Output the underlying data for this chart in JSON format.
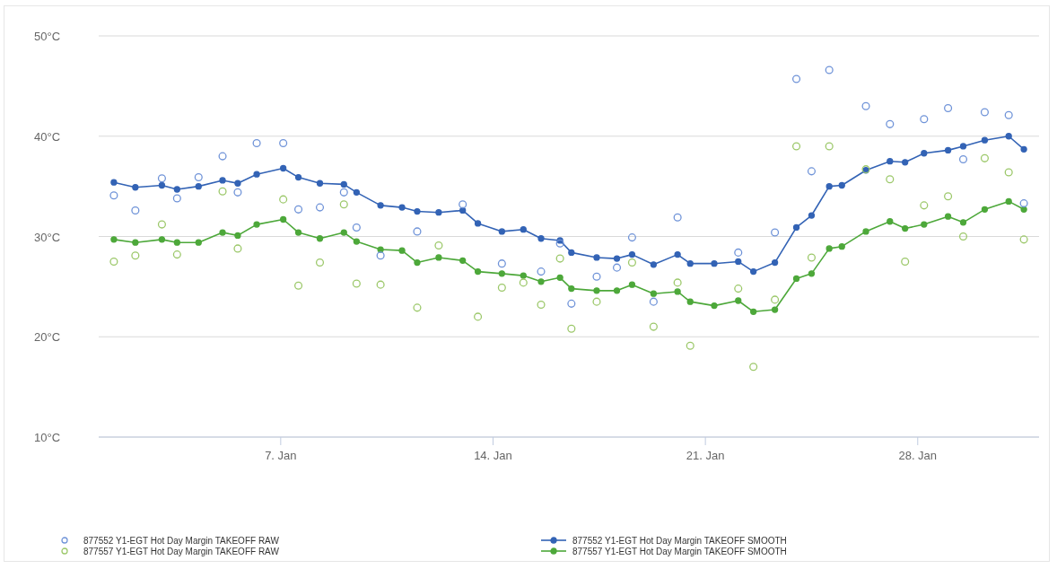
{
  "chart_data": {
    "type": "line",
    "marker": "circle",
    "grid": "y",
    "legend": "bottom",
    "xlim": [
      "--01-01",
      "--02-01"
    ],
    "xticks": [
      {
        "value": "--01-07",
        "label": "7. Jan"
      },
      {
        "value": "--01-14",
        "label": "14. Jan"
      },
      {
        "value": "--01-21",
        "label": "21. Jan"
      },
      {
        "value": "--01-28",
        "label": "28. Jan"
      }
    ],
    "ylim": [
      10,
      50
    ],
    "yticks": [
      {
        "value": 10,
        "label": "10°C"
      },
      {
        "value": 20,
        "label": "20°C"
      },
      {
        "value": 30,
        "label": "30°C"
      },
      {
        "value": 40,
        "label": "40°C"
      },
      {
        "value": 50,
        "label": "50°C"
      }
    ],
    "series": [
      {
        "name": "877552 Y1-EGT Hot Day Margin TAKEOFF RAW",
        "type": "scatter",
        "color": "#6f93d8",
        "x": [
          "--01-01T12:00",
          "--01-02T05:00",
          "--01-03T02:00",
          "--01-03T14:00",
          "--01-04T07:00",
          "--01-05T02:00",
          "--01-05T14:00",
          "--01-06T05:00",
          "--01-07T02:00",
          "--01-07T14:00",
          "--01-08T07:00",
          "--01-09T02:00",
          "--01-09T12:00",
          "--01-10T07:00",
          "--01-11T12:00",
          "--01-13T00:00",
          "--01-14T07:00",
          "--01-15T14:00",
          "--01-16T05:00",
          "--01-16T14:00",
          "--01-17T10:00",
          "--01-18T02:00",
          "--01-18T14:00",
          "--01-19T07:00",
          "--01-20T02:00",
          "--01-22T02:00",
          "--01-23T07:00",
          "--01-24T00:00",
          "--01-24T12:00",
          "--01-25T02:00",
          "--01-26T07:00",
          "--01-27T02:00",
          "--01-28T05:00",
          "--01-29T00:00",
          "--01-29T12:00",
          "--01-30T05:00",
          "--01-31T00:00",
          "--01-31T12:00"
        ],
        "values": [
          34.1,
          32.6,
          35.8,
          33.8,
          35.9,
          38.0,
          34.4,
          39.3,
          39.3,
          32.7,
          32.9,
          34.4,
          30.9,
          28.1,
          30.5,
          33.2,
          27.3,
          26.5,
          29.3,
          23.3,
          26.0,
          26.9,
          29.9,
          23.5,
          31.9,
          28.4,
          30.4,
          45.7,
          36.5,
          46.6,
          43.0,
          41.2,
          41.7,
          42.8,
          37.7,
          42.4,
          42.1,
          33.3
        ]
      },
      {
        "name": "877557 Y1-EGT Hot Day Margin TAKEOFF RAW",
        "type": "scatter",
        "color": "#9cc86a",
        "x": [
          "--01-01T12:00",
          "--01-02T05:00",
          "--01-03T02:00",
          "--01-03T14:00",
          "--01-05T02:00",
          "--01-05T14:00",
          "--01-07T02:00",
          "--01-07T14:00",
          "--01-08T07:00",
          "--01-09T02:00",
          "--01-09T12:00",
          "--01-10T07:00",
          "--01-11T12:00",
          "--01-12T05:00",
          "--01-13T12:00",
          "--01-14T07:00",
          "--01-15T00:00",
          "--01-15T14:00",
          "--01-16T05:00",
          "--01-16T14:00",
          "--01-17T10:00",
          "--01-18T14:00",
          "--01-19T07:00",
          "--01-20T02:00",
          "--01-20T12:00",
          "--01-22T02:00",
          "--01-22T14:00",
          "--01-23T07:00",
          "--01-24T00:00",
          "--01-24T12:00",
          "--01-25T02:00",
          "--01-26T07:00",
          "--01-27T02:00",
          "--01-27T14:00",
          "--01-28T05:00",
          "--01-29T00:00",
          "--01-29T12:00",
          "--01-30T05:00",
          "--01-31T00:00",
          "--01-31T12:00"
        ],
        "values": [
          27.5,
          28.1,
          31.2,
          28.2,
          34.5,
          28.8,
          33.7,
          25.1,
          27.4,
          33.2,
          25.3,
          25.2,
          22.9,
          29.1,
          22.0,
          24.9,
          25.4,
          23.2,
          27.8,
          20.8,
          23.5,
          27.4,
          21.0,
          25.4,
          19.1,
          24.8,
          17.0,
          23.7,
          39.0,
          27.9,
          39.0,
          36.7,
          35.7,
          27.5,
          33.1,
          34.0,
          30.0,
          37.8,
          36.4,
          29.7
        ]
      },
      {
        "name": "877552 Y1-EGT Hot Day Margin TAKEOFF SMOOTH",
        "color": "#3363b5",
        "x": [
          "--01-01T12:00",
          "--01-02T05:00",
          "--01-03T02:00",
          "--01-03T14:00",
          "--01-04T07:00",
          "--01-05T02:00",
          "--01-05T14:00",
          "--01-06T05:00",
          "--01-07T02:00",
          "--01-07T14:00",
          "--01-08T07:00",
          "--01-09T02:00",
          "--01-09T12:00",
          "--01-10T07:00",
          "--01-11T00:00",
          "--01-11T12:00",
          "--01-12T05:00",
          "--01-13T00:00",
          "--01-13T12:00",
          "--01-14T07:00",
          "--01-15T00:00",
          "--01-15T14:00",
          "--01-16T05:00",
          "--01-16T14:00",
          "--01-17T10:00",
          "--01-18T02:00",
          "--01-18T14:00",
          "--01-19T07:00",
          "--01-20T02:00",
          "--01-20T12:00",
          "--01-21T07:00",
          "--01-22T02:00",
          "--01-22T14:00",
          "--01-23T07:00",
          "--01-24T00:00",
          "--01-24T12:00",
          "--01-25T02:00",
          "--01-25T12:00",
          "--01-26T07:00",
          "--01-27T02:00",
          "--01-27T14:00",
          "--01-28T05:00",
          "--01-29T00:00",
          "--01-29T12:00",
          "--01-30T05:00",
          "--01-31T00:00",
          "--01-31T12:00"
        ],
        "values": [
          35.4,
          34.9,
          35.1,
          34.7,
          35.0,
          35.6,
          35.3,
          36.2,
          36.8,
          35.9,
          35.3,
          35.2,
          34.4,
          33.1,
          32.9,
          32.5,
          32.4,
          32.6,
          31.3,
          30.5,
          30.7,
          29.8,
          29.6,
          28.4,
          27.9,
          27.8,
          28.2,
          27.2,
          28.2,
          27.3,
          27.3,
          27.5,
          26.5,
          27.4,
          30.9,
          32.1,
          35.0,
          35.1,
          36.6,
          37.5,
          37.4,
          38.3,
          38.6,
          39.0,
          39.6,
          40.0,
          38.7
        ]
      },
      {
        "name": "877557 Y1-EGT Hot Day Margin TAKEOFF SMOOTH",
        "color": "#4da83a",
        "x": [
          "--01-01T12:00",
          "--01-02T05:00",
          "--01-03T02:00",
          "--01-03T14:00",
          "--01-04T07:00",
          "--01-05T02:00",
          "--01-05T14:00",
          "--01-06T05:00",
          "--01-07T02:00",
          "--01-07T14:00",
          "--01-08T07:00",
          "--01-09T02:00",
          "--01-09T12:00",
          "--01-10T07:00",
          "--01-11T00:00",
          "--01-11T12:00",
          "--01-12T05:00",
          "--01-13T00:00",
          "--01-13T12:00",
          "--01-14T07:00",
          "--01-15T00:00",
          "--01-15T14:00",
          "--01-16T05:00",
          "--01-16T14:00",
          "--01-17T10:00",
          "--01-18T02:00",
          "--01-18T14:00",
          "--01-19T07:00",
          "--01-20T02:00",
          "--01-20T12:00",
          "--01-21T07:00",
          "--01-22T02:00",
          "--01-22T14:00",
          "--01-23T07:00",
          "--01-24T00:00",
          "--01-24T12:00",
          "--01-25T02:00",
          "--01-25T12:00",
          "--01-26T07:00",
          "--01-27T02:00",
          "--01-27T14:00",
          "--01-28T05:00",
          "--01-29T00:00",
          "--01-29T12:00",
          "--01-30T05:00",
          "--01-31T00:00",
          "--01-31T12:00"
        ],
        "values": [
          29.7,
          29.4,
          29.7,
          29.4,
          29.4,
          30.4,
          30.1,
          31.2,
          31.7,
          30.4,
          29.8,
          30.4,
          29.5,
          28.7,
          28.6,
          27.4,
          27.9,
          27.6,
          26.5,
          26.3,
          26.1,
          25.5,
          25.9,
          24.8,
          24.6,
          24.6,
          25.2,
          24.3,
          24.5,
          23.5,
          23.1,
          23.6,
          22.5,
          22.7,
          25.8,
          26.3,
          28.8,
          29.0,
          30.5,
          31.5,
          30.8,
          31.2,
          32.0,
          31.4,
          32.7,
          33.5,
          32.7
        ]
      }
    ]
  }
}
